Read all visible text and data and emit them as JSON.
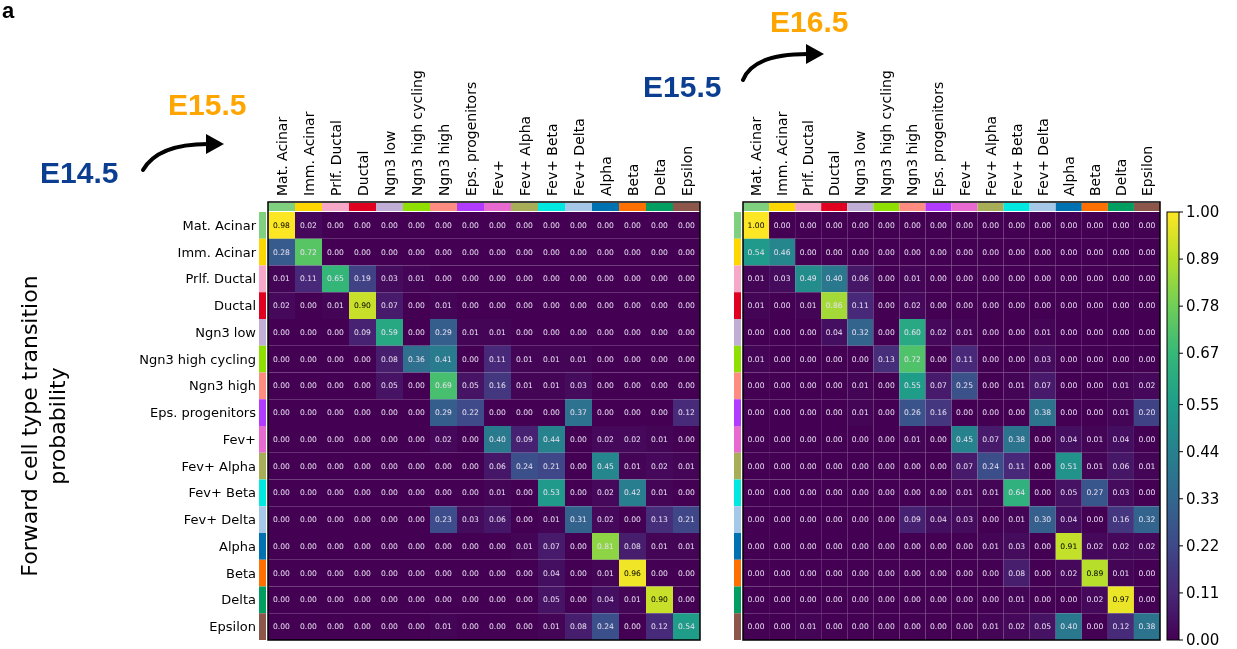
{
  "chart_data": [
    {
      "type": "heatmap",
      "ylabel": "Forward cell type transition probability",
      "annotations": [
        "a",
        "E14.5",
        "E15.5"
      ],
      "categories": [
        "Mat. Acinar",
        "Imm. Acinar",
        "Prlf. Ductal",
        "Ductal",
        "Ngn3 low",
        "Ngn3 high cycling",
        "Ngn3 high",
        "Eps. progenitors",
        "Fev+",
        "Fev+ Alpha",
        "Fev+ Beta",
        "Fev+ Delta",
        "Alpha",
        "Beta",
        "Delta",
        "Epsilon"
      ],
      "y_categories": [
        "Mat. Acinar",
        "Imm. Acinar",
        "Prlf. Ductal",
        "Ductal",
        "Ngn3 low",
        "Ngn3 high cycling",
        "Ngn3 high",
        "Eps. progenitors",
        "Fev+",
        "Fev+ Alpha",
        "Fev+ Beta",
        "Fev+ Delta",
        "Alpha",
        "Beta",
        "Delta",
        "Epsilon"
      ],
      "cell_labels": [
        [
          "0.98",
          "0.02",
          "0.00",
          "0.00",
          "0.00",
          "0.00",
          "0.00",
          "0.00",
          "0.00",
          "0.00",
          "0.00",
          "0.00",
          "0.00",
          "0.00",
          "0.00",
          "0.00"
        ],
        [
          "0.28",
          "0.72",
          "0.00",
          "0.00",
          "0.00",
          "0.00",
          "0.00",
          "0.00",
          "0.00",
          "0.00",
          "0.00",
          "0.00",
          "0.00",
          "0.00",
          "0.00",
          "0.00"
        ],
        [
          "0.01",
          "0.11",
          "0.65",
          "0.19",
          "0.03",
          "0.01",
          "0.00",
          "0.00",
          "0.00",
          "0.00",
          "0.00",
          "0.00",
          "0.00",
          "0.00",
          "0.00",
          "0.00"
        ],
        [
          "0.02",
          "0.00",
          "0.01",
          "0.90",
          "0.07",
          "0.00",
          "0.01",
          "0.00",
          "0.00",
          "0.00",
          "0.00",
          "0.00",
          "0.00",
          "0.00",
          "0.00",
          "0.00"
        ],
        [
          "0.00",
          "0.00",
          "0.00",
          "0.09",
          "0.59",
          "0.00",
          "0.29",
          "0.01",
          "0.01",
          "0.00",
          "0.00",
          "0.00",
          "0.00",
          "0.00",
          "0.00",
          "0.00"
        ],
        [
          "0.00",
          "0.00",
          "0.00",
          "0.00",
          "0.08",
          "0.36",
          "0.41",
          "0.00",
          "0.11",
          "0.01",
          "0.01",
          "0.01",
          "0.00",
          "0.00",
          "0.00",
          "0.00"
        ],
        [
          "0.00",
          "0.00",
          "0.00",
          "0.00",
          "0.05",
          "0.00",
          "0.69",
          "0.05",
          "0.16",
          "0.01",
          "0.01",
          "0.03",
          "0.00",
          "0.00",
          "0.00",
          "0.00"
        ],
        [
          "0.00",
          "0.00",
          "0.00",
          "0.00",
          "0.00",
          "0.00",
          "0.29",
          "0.22",
          "0.00",
          "0.00",
          "0.00",
          "0.37",
          "0.00",
          "0.00",
          "0.00",
          "0.12"
        ],
        [
          "0.00",
          "0.00",
          "0.00",
          "0.00",
          "0.00",
          "0.00",
          "0.02",
          "0.00",
          "0.40",
          "0.09",
          "0.44",
          "0.00",
          "0.02",
          "0.02",
          "0.01",
          "0.00"
        ],
        [
          "0.00",
          "0.00",
          "0.00",
          "0.00",
          "0.00",
          "0.00",
          "0.00",
          "0.00",
          "0.06",
          "0.24",
          "0.21",
          "0.00",
          "0.45",
          "0.01",
          "0.02",
          "0.01"
        ],
        [
          "0.00",
          "0.00",
          "0.00",
          "0.00",
          "0.00",
          "0.00",
          "0.00",
          "0.00",
          "0.01",
          "0.00",
          "0.53",
          "0.00",
          "0.02",
          "0.42",
          "0.01",
          "0.00"
        ],
        [
          "0.00",
          "0.00",
          "0.00",
          "0.00",
          "0.00",
          "0.00",
          "0.23",
          "0.03",
          "0.06",
          "0.00",
          "0.01",
          "0.31",
          "0.02",
          "0.00",
          "0.13",
          "0.21"
        ],
        [
          "0.00",
          "0.00",
          "0.00",
          "0.00",
          "0.00",
          "0.00",
          "0.00",
          "0.00",
          "0.00",
          "0.01",
          "0.07",
          "0.00",
          "0.81",
          "0.08",
          "0.01",
          "0.01"
        ],
        [
          "0.00",
          "0.00",
          "0.00",
          "0.00",
          "0.00",
          "0.00",
          "0.00",
          "0.00",
          "0.00",
          "0.00",
          "0.04",
          "0.00",
          "0.01",
          "0.96",
          "0.00",
          "0.00"
        ],
        [
          "0.00",
          "0.00",
          "0.00",
          "0.00",
          "0.00",
          "0.00",
          "0.00",
          "0.00",
          "0.00",
          "0.00",
          "0.05",
          "0.00",
          "0.04",
          "0.01",
          "0.90",
          "0.00"
        ],
        [
          "0.00",
          "0.00",
          "0.00",
          "0.00",
          "0.00",
          "0.00",
          "0.01",
          "0.00",
          "0.00",
          "0.00",
          "0.01",
          "0.08",
          "0.24",
          "0.00",
          "0.12",
          "0.54"
        ]
      ],
      "cells": [
        [
          0.98,
          0.02,
          0,
          0,
          0,
          0,
          0,
          0,
          0,
          0,
          0,
          0,
          0,
          0,
          0,
          0
        ],
        [
          0.28,
          0.72,
          0,
          0,
          0,
          0,
          0,
          0,
          0,
          0,
          0,
          0,
          0,
          0,
          0,
          0
        ],
        [
          0.01,
          0.11,
          0.65,
          0.19,
          0.03,
          0.01,
          0,
          0,
          0,
          0,
          0,
          0,
          0,
          0,
          0,
          0
        ],
        [
          0.02,
          0,
          0.01,
          0.9,
          0.07,
          0,
          0.01,
          0,
          0,
          0,
          0,
          0,
          0,
          0,
          0,
          0
        ],
        [
          0,
          0,
          0,
          0.09,
          0.59,
          0,
          0.29,
          0.01,
          0.01,
          0,
          0,
          0,
          0,
          0,
          0,
          0
        ],
        [
          0,
          0,
          0,
          0,
          0.08,
          0.36,
          0.41,
          0,
          0.11,
          0.01,
          0.01,
          0.01,
          0,
          0,
          0,
          0
        ],
        [
          0,
          0,
          0,
          0,
          0.05,
          0,
          0.69,
          0.05,
          0.16,
          0.01,
          0.01,
          0.03,
          0,
          0,
          0,
          0
        ],
        [
          0,
          0,
          0,
          0,
          0,
          0,
          0.29,
          0.22,
          0,
          0,
          0,
          0.37,
          0,
          0,
          0,
          0.12
        ],
        [
          0,
          0,
          0,
          0,
          0,
          0,
          0.02,
          0,
          0.4,
          0.09,
          0.44,
          0,
          0.02,
          0.02,
          0.01,
          0
        ],
        [
          0,
          0,
          0,
          0,
          0,
          0,
          0,
          0,
          0.06,
          0.24,
          0.21,
          0,
          0.45,
          0.01,
          0.02,
          0.01
        ],
        [
          0,
          0,
          0,
          0,
          0,
          0,
          0,
          0,
          0.01,
          0,
          0.53,
          0,
          0.02,
          0.42,
          0.01,
          0
        ],
        [
          0,
          0,
          0,
          0,
          0,
          0,
          0.23,
          0.03,
          0.06,
          0,
          0.01,
          0.31,
          0.02,
          0,
          0.13,
          0.21
        ],
        [
          0,
          0,
          0,
          0,
          0,
          0,
          0,
          0,
          0,
          0.01,
          0.07,
          0,
          0.81,
          0.08,
          0.01,
          0.01
        ],
        [
          0,
          0,
          0,
          0,
          0,
          0,
          0,
          0,
          0,
          0,
          0.04,
          0,
          0.01,
          0.96,
          0,
          0
        ],
        [
          0,
          0,
          0,
          0,
          0,
          0,
          0,
          0,
          0,
          0,
          0.05,
          0,
          0.04,
          0.01,
          0.9,
          0
        ],
        [
          0,
          0,
          0,
          0,
          0,
          0,
          0.01,
          0,
          0,
          0,
          0.01,
          0.08,
          0.24,
          0,
          0.12,
          0.54
        ]
      ]
    },
    {
      "type": "heatmap",
      "annotations": [
        "E15.5",
        "E16.5"
      ],
      "categories": [
        "Mat. Acinar",
        "Imm. Acinar",
        "Prlf. Ductal",
        "Ductal",
        "Ngn3 low",
        "Ngn3 high cycling",
        "Ngn3 high",
        "Eps. progenitors",
        "Fev+",
        "Fev+ Alpha",
        "Fev+ Beta",
        "Fev+ Delta",
        "Alpha",
        "Beta",
        "Delta",
        "Epsilon"
      ],
      "y_categories": [
        null,
        null,
        null,
        null,
        null,
        null,
        null,
        null,
        null,
        null,
        null,
        null,
        null,
        null,
        null,
        null
      ],
      "clim": [
        0,
        1
      ],
      "cticks": [
        {
          "value": 0,
          "label": "0.00"
        },
        0.11,
        0.22,
        0.33,
        0.44,
        0.55,
        0.67,
        0.78,
        0.89,
        {
          "value": 1,
          "label": "1.00"
        }
      ],
      "cell_labels": [
        [
          "1.00",
          "0.00",
          "0.00",
          "0.00",
          "0.00",
          "0.00",
          "0.00",
          "0.00",
          "0.00",
          "0.00",
          "0.00",
          "0.00",
          "0.00",
          "0.00",
          "0.00",
          "0.00"
        ],
        [
          "0.54",
          "0.46",
          "0.00",
          "0.00",
          "0.00",
          "0.00",
          "0.00",
          "0.00",
          "0.00",
          "0.00",
          "0.00",
          "0.00",
          "0.00",
          "0.00",
          "0.00",
          "0.00"
        ],
        [
          "0.01",
          "0.03",
          "0.49",
          "0.40",
          "0.06",
          "0.00",
          "0.01",
          "0.00",
          "0.00",
          "0.00",
          "0.00",
          "0.00",
          "0.00",
          "0.00",
          "0.00",
          "0.00"
        ],
        [
          "0.01",
          "0.00",
          "0.01",
          "0.86",
          "0.11",
          "0.00",
          "0.02",
          "0.00",
          "0.00",
          "0.00",
          "0.00",
          "0.00",
          "0.00",
          "0.00",
          "0.00",
          "0.00"
        ],
        [
          "0.00",
          "0.00",
          "0.00",
          "0.04",
          "0.32",
          "0.00",
          "0.60",
          "0.02",
          "0.01",
          "0.00",
          "0.00",
          "0.01",
          "0.00",
          "0.00",
          "0.00",
          "0.00"
        ],
        [
          "0.01",
          "0.00",
          "0.00",
          "0.00",
          "0.00",
          "0.13",
          "0.72",
          "0.00",
          "0.11",
          "0.00",
          "0.00",
          "0.03",
          "0.00",
          "0.00",
          "0.00",
          "0.00"
        ],
        [
          "0.00",
          "0.00",
          "0.00",
          "0.00",
          "0.01",
          "0.00",
          "0.55",
          "0.07",
          "0.25",
          "0.00",
          "0.01",
          "0.07",
          "0.00",
          "0.00",
          "0.01",
          "0.02"
        ],
        [
          "0.00",
          "0.00",
          "0.00",
          "0.00",
          "0.01",
          "0.00",
          "0.26",
          "0.16",
          "0.00",
          "0.00",
          "0.00",
          "0.38",
          "0.00",
          "0.00",
          "0.01",
          "0.20"
        ],
        [
          "0.00",
          "0.00",
          "0.00",
          "0.00",
          "0.00",
          "0.00",
          "0.01",
          "0.00",
          "0.45",
          "0.07",
          "0.38",
          "0.00",
          "0.04",
          "0.01",
          "0.04",
          "0.00"
        ],
        [
          "0.00",
          "0.00",
          "0.00",
          "0.00",
          "0.00",
          "0.00",
          "0.00",
          "0.00",
          "0.07",
          "0.24",
          "0.11",
          "0.00",
          "0.51",
          "0.01",
          "0.06",
          "0.01"
        ],
        [
          "0.00",
          "0.00",
          "0.00",
          "0.00",
          "0.00",
          "0.00",
          "0.00",
          "0.00",
          "0.01",
          "0.01",
          "0.64",
          "0.00",
          "0.05",
          "0.27",
          "0.03",
          "0.00"
        ],
        [
          "0.00",
          "0.00",
          "0.00",
          "0.00",
          "0.00",
          "0.00",
          "0.09",
          "0.04",
          "0.03",
          "0.00",
          "0.01",
          "0.30",
          "0.04",
          "0.00",
          "0.16",
          "0.32"
        ],
        [
          "0.00",
          "0.00",
          "0.00",
          "0.00",
          "0.00",
          "0.00",
          "0.00",
          "0.00",
          "0.00",
          "0.01",
          "0.03",
          "0.00",
          "0.91",
          "0.02",
          "0.02",
          "0.02"
        ],
        [
          "0.00",
          "0.00",
          "0.00",
          "0.00",
          "0.00",
          "0.00",
          "0.00",
          "0.00",
          "0.00",
          "0.00",
          "0.08",
          "0.00",
          "0.02",
          "0.89",
          "0.01",
          "0.00"
        ],
        [
          "0.00",
          "0.00",
          "0.00",
          "0.00",
          "0.00",
          "0.00",
          "0.00",
          "0.00",
          "0.00",
          "0.00",
          "0.01",
          "0.00",
          "0.00",
          "0.02",
          "0.97",
          "0.00"
        ],
        [
          "0.00",
          "0.00",
          "0.01",
          "0.00",
          "0.00",
          "0.00",
          "0.00",
          "0.00",
          "0.00",
          "0.01",
          "0.02",
          "0.05",
          "0.40",
          "0.00",
          "0.12",
          "0.38"
        ]
      ],
      "cells": [
        [
          1,
          0,
          0,
          0,
          0,
          0,
          0,
          0,
          0,
          0,
          0,
          0,
          0,
          0,
          0,
          0
        ],
        [
          0.54,
          0.46,
          0,
          0,
          0,
          0,
          0,
          0,
          0,
          0,
          0,
          0,
          0,
          0,
          0,
          0
        ],
        [
          0.01,
          0.03,
          0.49,
          0.4,
          0.06,
          0,
          0.01,
          0,
          0,
          0,
          0,
          0,
          0,
          0,
          0,
          0
        ],
        [
          0.01,
          0,
          0.01,
          0.86,
          0.11,
          0,
          0.02,
          0,
          0,
          0,
          0,
          0,
          0,
          0,
          0,
          0
        ],
        [
          0,
          0,
          0,
          0.04,
          0.32,
          0,
          0.6,
          0.02,
          0.01,
          0,
          0,
          0.01,
          0,
          0,
          0,
          0
        ],
        [
          0.01,
          0,
          0,
          0,
          0,
          0.13,
          0.72,
          0,
          0.11,
          0,
          0,
          0.03,
          0,
          0,
          0,
          0
        ],
        [
          0,
          0,
          0,
          0,
          0.01,
          0,
          0.55,
          0.07,
          0.25,
          0,
          0.01,
          0.07,
          0,
          0,
          0.01,
          0.02
        ],
        [
          0,
          0,
          0,
          0,
          0.01,
          0,
          0.26,
          0.16,
          0,
          0,
          0,
          0.38,
          0,
          0,
          0.01,
          0.2
        ],
        [
          0,
          0,
          0,
          0,
          0,
          0,
          0.01,
          0,
          0.45,
          0.07,
          0.38,
          0,
          0.04,
          0.01,
          0.04,
          0
        ],
        [
          0,
          0,
          0,
          0,
          0,
          0,
          0,
          0,
          0.07,
          0.24,
          0.11,
          0,
          0.51,
          0.01,
          0.06,
          0.01
        ],
        [
          0,
          0,
          0,
          0,
          0,
          0,
          0,
          0,
          0.01,
          0.01,
          0.64,
          0,
          0.05,
          0.27,
          0.03,
          0
        ],
        [
          0,
          0,
          0,
          0,
          0,
          0,
          0.09,
          0.04,
          0.03,
          0,
          0.01,
          0.3,
          0.04,
          0,
          0.16,
          0.32
        ],
        [
          0,
          0,
          0,
          0,
          0,
          0,
          0,
          0,
          0,
          0.01,
          0.03,
          0,
          0.91,
          0.02,
          0.02,
          0.02
        ],
        [
          0,
          0,
          0,
          0,
          0,
          0,
          0,
          0,
          0,
          0,
          0.08,
          0,
          0.02,
          0.89,
          0.01,
          0
        ],
        [
          0,
          0,
          0,
          0,
          0,
          0,
          0,
          0,
          0,
          0,
          0.01,
          0,
          0,
          0.02,
          0.97,
          0
        ],
        [
          0,
          0,
          0.01,
          0,
          0,
          0,
          0,
          0,
          0,
          0.01,
          0.02,
          0.05,
          0.4,
          0,
          0.12,
          0.38
        ]
      ]
    }
  ]
}
